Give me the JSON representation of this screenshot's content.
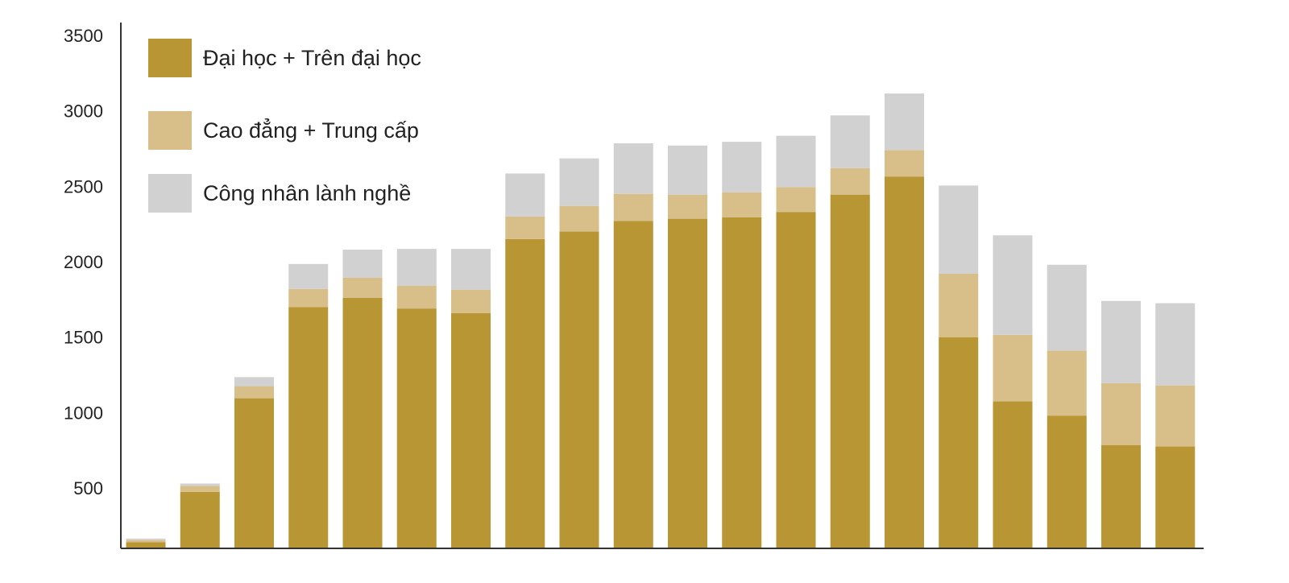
{
  "chart_data": {
    "type": "bar",
    "stacked": true,
    "title": "",
    "xlabel": "",
    "ylabel": "",
    "categories": [
      "",
      "",
      "",
      "",
      "",
      "",
      "",
      "",
      "",
      "",
      "",
      "",
      "",
      "",
      "",
      "",
      "",
      "",
      "",
      ""
    ],
    "ylim": [
      100,
      3500
    ],
    "yticks": [
      500,
      1000,
      1500,
      2000,
      2500,
      3000,
      3500
    ],
    "ytick_labels": [
      "500",
      "1000",
      "1500",
      "2000",
      "2500",
      "3000",
      "3500"
    ],
    "grid": false,
    "legend_position": "top-left",
    "series": [
      {
        "name": "Đại học + Trên đại học",
        "color": "#b89633",
        "values": [
          140,
          475,
          1095,
          1700,
          1760,
          1690,
          1660,
          2150,
          2200,
          2270,
          2285,
          2295,
          2330,
          2445,
          2565,
          1500,
          1075,
          980,
          785,
          775
        ]
      },
      {
        "name": "Cao đẳng + Trung cấp",
        "color": "#d8bf89",
        "values": [
          15,
          40,
          80,
          120,
          135,
          150,
          155,
          150,
          170,
          180,
          160,
          165,
          165,
          175,
          175,
          420,
          440,
          430,
          410,
          405
        ]
      },
      {
        "name": "Công nhân lành nghề",
        "color": "#d1d1d1",
        "values": [
          10,
          15,
          60,
          165,
          185,
          245,
          270,
          285,
          315,
          335,
          325,
          335,
          340,
          350,
          375,
          585,
          660,
          570,
          545,
          545
        ]
      }
    ]
  }
}
